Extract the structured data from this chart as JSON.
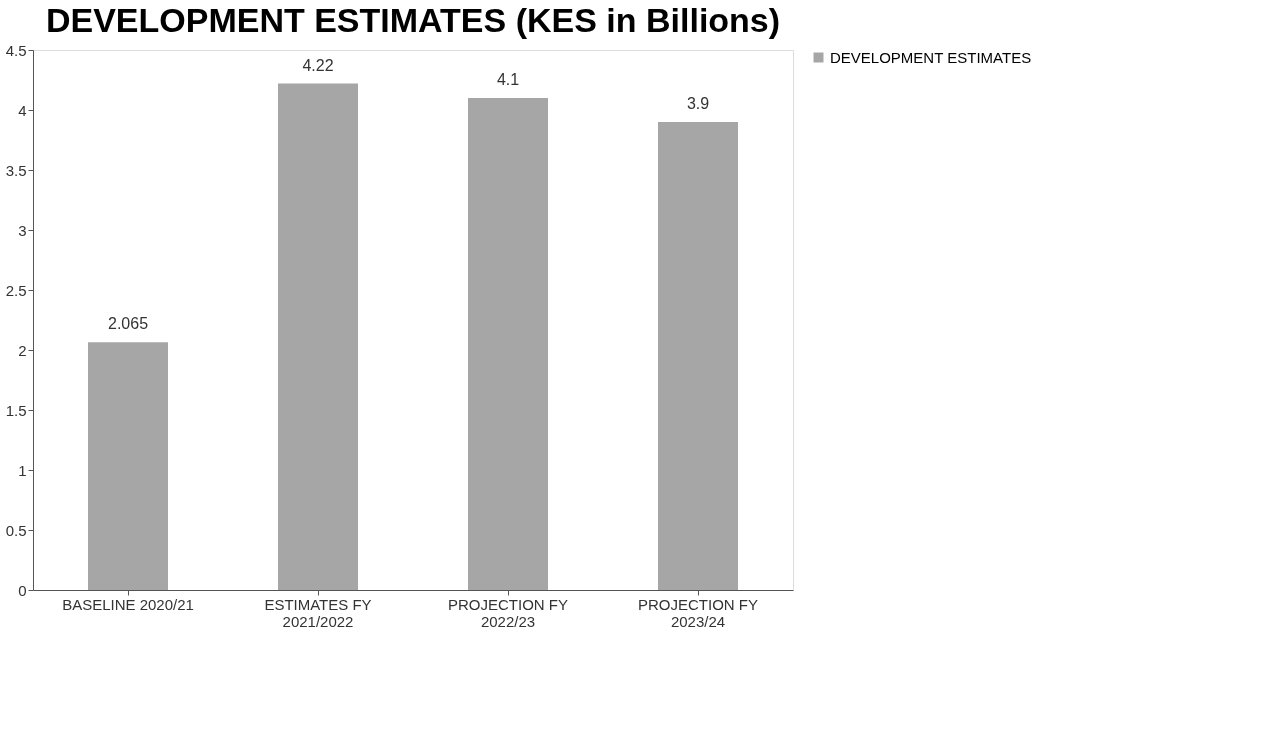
{
  "chart_data": {
    "type": "bar",
    "title": "DEVELOPMENT ESTIMATES (KES in Billions)",
    "categories": [
      "BASELINE 2020/21",
      "ESTIMATES FY\n2021/2022",
      "PROJECTION FY\n2022/23",
      "PROJECTION FY\n2023/24"
    ],
    "series": [
      {
        "name": "DEVELOPMENT ESTIMATES",
        "color": "#a6a6a6",
        "values": [
          2.065,
          4.22,
          4.1,
          3.9
        ]
      }
    ],
    "ylim": [
      0,
      4.5
    ],
    "yticks": [
      0,
      0.5,
      1,
      1.5,
      2,
      2.5,
      3,
      3.5,
      4,
      4.5
    ],
    "data_labels": true,
    "grid": false,
    "legend": "right"
  }
}
